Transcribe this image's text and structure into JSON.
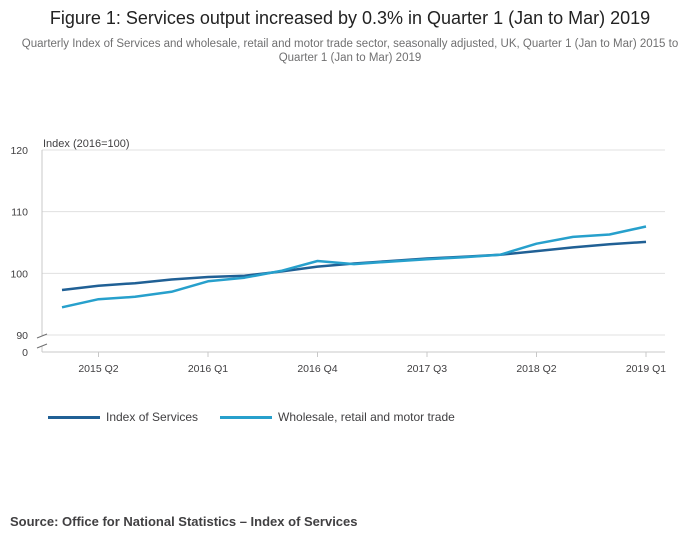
{
  "chart_data": {
    "type": "line",
    "title": "Figure 1: Services output increased by 0.3% in Quarter 1 (Jan to Mar) 2019",
    "subtitle": "Quarterly Index of Services and wholesale, retail and motor trade sector, seasonally adjusted, UK, Quarter 1 (Jan to Mar) 2015 to Quarter 1 (Jan to Mar) 2019",
    "ylabel": "Index (2016=100)",
    "xlabel": "",
    "ylim": [
      90,
      120
    ],
    "y_ticks": [
      120,
      110,
      100,
      90
    ],
    "y_break_label": "0",
    "x": [
      "2015 Q1",
      "2015 Q2",
      "2015 Q3",
      "2015 Q4",
      "2016 Q1",
      "2016 Q2",
      "2016 Q3",
      "2016 Q4",
      "2017 Q1",
      "2017 Q2",
      "2017 Q3",
      "2017 Q4",
      "2018 Q1",
      "2018 Q2",
      "2018 Q3",
      "2018 Q4",
      "2019 Q1"
    ],
    "x_tick_labels": [
      "2015 Q2",
      "2016 Q1",
      "2016 Q4",
      "2017 Q3",
      "2018 Q2",
      "2019 Q1"
    ],
    "series": [
      {
        "name": "Index of Services",
        "color": "#206095",
        "values": [
          97.3,
          98.0,
          98.4,
          99.0,
          99.4,
          99.6,
          100.3,
          101.1,
          101.6,
          102.0,
          102.4,
          102.7,
          103.0,
          103.6,
          104.2,
          104.7,
          105.1
        ]
      },
      {
        "name": "Wholesale, retail and motor trade",
        "color": "#27a0cc",
        "values": [
          94.5,
          95.8,
          96.2,
          97.0,
          98.7,
          99.3,
          100.4,
          102.0,
          101.5,
          101.9,
          102.3,
          102.6,
          103.0,
          104.8,
          105.9,
          106.3,
          107.6
        ]
      }
    ]
  },
  "source": "Source: Office for National Statistics – Index of Services"
}
